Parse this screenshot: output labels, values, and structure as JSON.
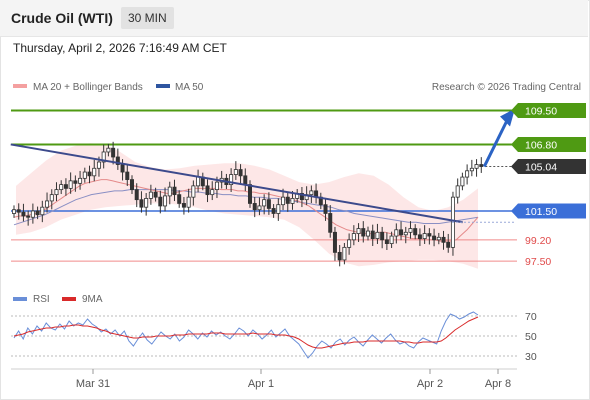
{
  "header": {
    "title": "Crude Oil (WTI)",
    "timeframe": "30 MIN"
  },
  "timestamp": "Thursday, April 2, 2026 7:16:49 AM CET",
  "legend": {
    "bollinger": "MA 20 + Bollinger Bands",
    "ma50": "MA 50",
    "credit": "Research © 2026 Trading Central"
  },
  "rsi_legend": {
    "rsi": "RSI",
    "ma9": "9MA"
  },
  "colors": {
    "green": "#4f9a13",
    "blue": "#3b6fd8",
    "red": "#e37f7f",
    "dark": "#333333",
    "trend": "#3c4a8c",
    "band": "#fde3e3"
  },
  "chart_data": [
    {
      "type": "candlestick",
      "x_tick_labels": [
        "Mar 31",
        "Apr 1",
        "Apr 2",
        "Apr 8"
      ],
      "ylim": [
        96.0,
        110.5
      ],
      "levels": [
        {
          "value": 109.5,
          "label": "109.50",
          "style": "resistance-box"
        },
        {
          "value": 106.8,
          "label": "106.80",
          "style": "resistance-box"
        },
        {
          "value": 105.04,
          "label": "105.04",
          "style": "last-price-box"
        },
        {
          "value": 101.5,
          "label": "101.50",
          "style": "pivot-box"
        },
        {
          "value": 99.2,
          "label": "99.20",
          "style": "support-text"
        },
        {
          "value": 97.5,
          "label": "97.50",
          "style": "support-text"
        }
      ],
      "close": [
        101.6,
        101.4,
        101.1,
        101.0,
        101.5,
        101.2,
        101.8,
        102.3,
        102.8,
        103.2,
        103.6,
        103.3,
        103.9,
        103.7,
        104.1,
        104.6,
        104.3,
        104.9,
        105.4,
        106.2,
        106.5,
        105.8,
        105.2,
        104.6,
        104.0,
        103.2,
        102.4,
        101.8,
        102.5,
        103.0,
        102.6,
        101.9,
        102.7,
        103.4,
        102.8,
        102.1,
        101.8,
        102.6,
        103.5,
        104.2,
        103.5,
        102.8,
        103.2,
        103.8,
        104.1,
        103.6,
        104.4,
        104.8,
        104.3,
        103.6,
        102.1,
        101.6,
        101.9,
        102.4,
        101.7,
        101.3,
        102.0,
        102.6,
        102.1,
        102.5,
        102.9,
        102.4,
        102.8,
        103.1,
        102.6,
        102.0,
        101.3,
        99.8,
        98.2,
        97.6,
        98.6,
        99.2,
        99.7,
        100.1,
        99.5,
        99.9,
        99.3,
        99.8,
        99.2,
        98.9,
        99.5,
        100.0,
        99.6,
        99.8,
        100.1,
        99.6,
        99.3,
        99.7,
        99.5,
        99.2,
        99.4,
        99.0,
        98.6,
        102.6,
        103.5,
        104.2,
        104.7,
        104.9,
        105.2,
        105.04
      ],
      "ma20": [
        101.0,
        101.1,
        101.1,
        101.2,
        101.3,
        101.5,
        101.7,
        102.0,
        102.3,
        102.6,
        102.9,
        103.2,
        103.5,
        103.7,
        103.8,
        103.9,
        104.0,
        104.0,
        103.9,
        103.8,
        103.7,
        103.6,
        103.5,
        103.4,
        103.3,
        103.2,
        103.1,
        103.0,
        102.9,
        102.9,
        103.0,
        103.1,
        103.2,
        103.3,
        103.3,
        103.3,
        103.3,
        103.3,
        103.2,
        103.2,
        103.2,
        103.1,
        103.1,
        103.0,
        103.0,
        102.9,
        102.9,
        102.8,
        102.7,
        102.6,
        102.5,
        102.4,
        102.3,
        102.1,
        101.9,
        101.6,
        101.3,
        101.0,
        100.7,
        100.4,
        100.2,
        100.0,
        99.9,
        99.8,
        99.7,
        99.7,
        99.7,
        99.8,
        99.8,
        99.7,
        99.6,
        99.5,
        99.4,
        99.3,
        99.3,
        99.2,
        99.2,
        99.2,
        99.1,
        99.1,
        99.1,
        99.2,
        99.6,
        100.0,
        100.5,
        101.0
      ],
      "ma50": [
        100.4,
        100.6,
        100.8,
        101.0,
        101.2,
        101.5,
        101.8,
        102.1,
        102.4,
        102.6,
        102.8,
        102.9,
        103.0,
        103.1,
        103.1,
        103.2,
        103.2,
        103.2,
        103.2,
        103.2,
        103.2,
        103.1,
        103.1,
        103.0,
        103.0,
        102.9,
        102.9,
        102.8,
        102.8,
        102.7,
        102.7,
        102.6,
        102.6,
        102.5,
        102.5,
        102.4,
        102.3,
        102.2,
        102.1,
        102.0,
        101.9,
        101.8,
        101.6,
        101.5,
        101.3,
        101.2,
        101.1,
        101.0,
        100.9,
        100.8,
        100.7,
        100.6,
        100.6,
        100.5,
        100.5,
        100.5,
        100.6,
        100.7,
        100.8,
        100.9,
        101.0
      ],
      "bollinger_upper": [
        103.5,
        104.5,
        105.5,
        106.3,
        106.7,
        106.9,
        106.8,
        106.2,
        105.4,
        105.0,
        104.8,
        104.9,
        105.1,
        105.2,
        105.3,
        105.3,
        105.1,
        104.8,
        104.3,
        103.8,
        103.6,
        103.8,
        104.2,
        104.5,
        104.3,
        103.6,
        102.6,
        101.8,
        101.5,
        101.8,
        102.4,
        103.3
      ],
      "bollinger_lower": [
        99.6,
        99.8,
        100.2,
        100.8,
        101.2,
        101.6,
        101.8,
        101.9,
        102.0,
        102.1,
        102.1,
        102.0,
        101.8,
        101.5,
        101.3,
        101.2,
        101.1,
        101.0,
        100.8,
        100.2,
        99.2,
        98.1,
        97.4,
        97.1,
        97.2,
        97.4,
        97.5,
        97.6,
        97.6,
        97.5,
        97.3,
        96.9
      ],
      "trendline": [
        [
          1,
          106.8
        ],
        [
          87,
          100.6
        ]
      ],
      "target_arrow": {
        "from": 105.04,
        "to": 109.5
      }
    },
    {
      "type": "line",
      "panel": "RSI",
      "y_tick_labels": [
        "70",
        "50",
        "30"
      ],
      "ylim": [
        20,
        80
      ],
      "guide_levels": [
        70,
        50,
        30
      ],
      "series": [
        {
          "name": "RSI",
          "color": "#6a8fd8",
          "values": [
            48,
            55,
            47,
            58,
            52,
            60,
            55,
            63,
            58,
            56,
            62,
            57,
            65,
            60,
            63,
            61,
            67,
            62,
            59,
            54,
            57,
            52,
            56,
            50,
            55,
            45,
            40,
            47,
            53,
            46,
            42,
            48,
            54,
            50,
            47,
            52,
            45,
            49,
            56,
            52,
            47,
            53,
            49,
            55,
            51,
            54,
            50,
            47,
            52,
            58,
            55,
            50,
            56,
            52,
            47,
            51,
            56,
            49,
            53,
            57,
            50,
            46,
            42,
            35,
            28,
            33,
            40,
            45,
            42,
            38,
            44,
            47,
            41,
            46,
            49,
            44,
            40,
            46,
            51,
            47,
            43,
            48,
            52,
            46,
            42,
            44,
            40,
            38,
            44,
            48,
            46,
            44,
            42,
            55,
            65,
            72,
            70,
            67,
            69,
            72,
            74,
            71
          ]
        },
        {
          "name": "9MA",
          "color": "#d92a2a",
          "values": [
            50,
            51,
            52,
            54,
            55,
            56,
            57,
            58,
            58,
            59,
            59,
            60,
            60,
            61,
            61,
            60,
            60,
            59,
            58,
            56,
            55,
            53,
            52,
            51,
            50,
            49,
            48,
            48,
            49,
            49,
            49,
            50,
            50,
            50,
            50,
            51,
            51,
            51,
            52,
            52,
            52,
            52,
            52,
            53,
            53,
            53,
            52,
            52,
            52,
            52,
            52,
            52,
            53,
            52,
            52,
            52,
            52,
            51,
            51,
            51,
            50,
            49,
            47,
            44,
            41,
            39,
            38,
            38,
            39,
            40,
            41,
            42,
            43,
            43,
            44,
            44,
            44,
            45,
            45,
            45,
            45,
            45,
            45,
            45,
            45,
            44,
            44,
            43,
            43,
            44,
            44,
            44,
            44,
            45,
            48,
            52,
            56,
            59,
            62,
            65,
            67,
            69
          ]
        }
      ]
    }
  ]
}
